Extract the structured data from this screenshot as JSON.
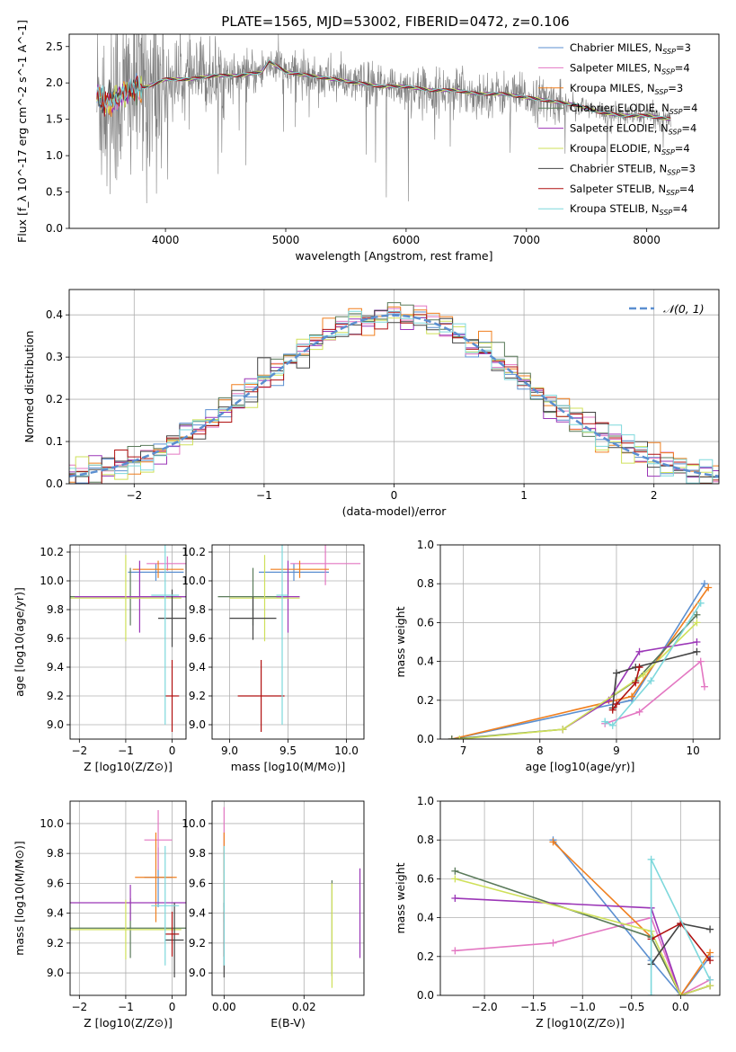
{
  "figure": {
    "title": "PLATE=1565, MJD=53002, FIBERID=0472, z=0.106"
  },
  "models": [
    {
      "name": "Chabrier MILES",
      "nssp": 3,
      "color": "#5b8fd0"
    },
    {
      "name": "Salpeter MILES",
      "nssp": 4,
      "color": "#e377c2"
    },
    {
      "name": "Kroupa MILES",
      "nssp": 3,
      "color": "#f07f1e"
    },
    {
      "name": "Chabrier ELODIE",
      "nssp": 4,
      "color": "#5a7a5a"
    },
    {
      "name": "Salpeter ELODIE",
      "nssp": 4,
      "color": "#9b36b7"
    },
    {
      "name": "Kroupa ELODIE",
      "nssp": 4,
      "color": "#cfe05a"
    },
    {
      "name": "Chabrier STELIB",
      "nssp": 3,
      "color": "#444444"
    },
    {
      "name": "Salpeter STELIB",
      "nssp": 4,
      "color": "#b01010"
    },
    {
      "name": "Kroupa STELIB",
      "nssp": 4,
      "color": "#7dd8dc"
    }
  ],
  "chart_data": [
    {
      "id": "spectrum",
      "type": "line",
      "xlabel": "wavelength [Angstrom, rest frame]",
      "ylabel": "Flux [f_λ 10^-17 erg cm^-2 s^-1 A^-1]",
      "xlim": [
        3200,
        8600
      ],
      "ylim": [
        0,
        2.67
      ],
      "xticks": [
        4000,
        5000,
        6000,
        7000,
        8000
      ],
      "yticks": [
        0.0,
        0.5,
        1.0,
        1.5,
        2.0,
        2.5
      ],
      "grid": false,
      "legend": "top-right",
      "data_color": "#7f7f7f",
      "continuum": {
        "x": [
          3430,
          3550,
          3700,
          3850,
          4000,
          4200,
          4400,
          4600,
          4800,
          4860,
          5000,
          5200,
          5400,
          5600,
          5800,
          6000,
          6200,
          6400,
          6600,
          6800,
          7000,
          7200,
          7400,
          7600,
          7800,
          8000,
          8200
        ],
        "y": [
          1.8,
          1.75,
          1.9,
          1.95,
          2.05,
          2.05,
          2.1,
          2.1,
          2.15,
          2.3,
          2.15,
          2.1,
          2.05,
          2.0,
          1.95,
          1.95,
          1.9,
          1.9,
          1.85,
          1.85,
          1.8,
          1.75,
          1.7,
          1.6,
          1.55,
          1.55,
          1.5
        ]
      }
    },
    {
      "id": "residuals",
      "type": "histogram",
      "xlabel": "(data-model)/error",
      "ylabel": "Normed distribution",
      "xlim": [
        -2.5,
        2.5
      ],
      "ylim": [
        0,
        0.46
      ],
      "xticks": [
        -2,
        -1,
        0,
        1,
        2
      ],
      "yticks": [
        0.0,
        0.1,
        0.2,
        0.3,
        0.4
      ],
      "grid": true,
      "legend": "top-right",
      "reference_label": "𝒩(0, 1)",
      "reference": {
        "mean": 0,
        "sigma": 1
      },
      "bin_width": 0.1
    },
    {
      "id": "age-vs-Z",
      "type": "errorbar",
      "xlabel": "Z [log10(Z/Z⊙)]",
      "ylabel": "age [log10(age/yr)]",
      "xlim": [
        -2.2,
        0.3
      ],
      "ylim": [
        8.9,
        10.25
      ],
      "xticks": [
        -2,
        -1,
        0
      ],
      "yticks": [
        9.0,
        9.2,
        9.4,
        9.6,
        9.8,
        10.0,
        10.2
      ],
      "grid": true,
      "points": [
        {
          "model": 0,
          "x": -0.35,
          "xerr": 0.6,
          "y": 10.06,
          "yerr": 0.06
        },
        {
          "model": 1,
          "x": -0.1,
          "xerr": 0.45,
          "y": 10.12,
          "yerr": 0.05
        },
        {
          "model": 2,
          "x": -0.3,
          "xerr": 0.55,
          "y": 10.08,
          "yerr": 0.06
        },
        {
          "model": 3,
          "x": -0.9,
          "xerr": 1.3,
          "y": 9.89,
          "yerr": 0.2
        },
        {
          "model": 4,
          "x": -0.7,
          "xerr": 1.4,
          "y": 9.89,
          "yerr": 0.25
        },
        {
          "model": 5,
          "x": -1.0,
          "xerr": 1.2,
          "y": 9.88,
          "yerr": 0.3
        },
        {
          "model": 6,
          "x": 0.0,
          "xerr": 0.3,
          "y": 9.74,
          "yerr": 0.2
        },
        {
          "model": 7,
          "x": 0.0,
          "xerr": 0.15,
          "y": 9.2,
          "yerr": 0.25
        },
        {
          "model": 8,
          "x": -0.15,
          "xerr": 0.3,
          "y": 9.9,
          "yerr": 0.9
        }
      ]
    },
    {
      "id": "age-vs-mass",
      "type": "errorbar",
      "xlabel": "mass [log10(M/M⊙)]",
      "ylabel": "",
      "xlim": [
        8.85,
        10.15
      ],
      "ylim": [
        8.9,
        10.25
      ],
      "xticks": [
        9.0,
        9.5,
        10.0
      ],
      "yticks": [
        9.0,
        9.2,
        9.4,
        9.6,
        9.8,
        10.0,
        10.2
      ],
      "grid": true,
      "points": [
        {
          "model": 0,
          "x": 9.55,
          "xerr": 0.3,
          "y": 10.06,
          "yerr": 0.06
        },
        {
          "model": 1,
          "x": 9.82,
          "xerr": 0.3,
          "y": 10.12,
          "yerr": 0.15
        },
        {
          "model": 2,
          "x": 9.6,
          "xerr": 0.25,
          "y": 10.08,
          "yerr": 0.06
        },
        {
          "model": 3,
          "x": 9.2,
          "xerr": 0.3,
          "y": 9.89,
          "yerr": 0.2
        },
        {
          "model": 4,
          "x": 9.5,
          "xerr": 0.1,
          "y": 9.89,
          "yerr": 0.25
        },
        {
          "model": 5,
          "x": 9.3,
          "xerr": 0.3,
          "y": 9.88,
          "yerr": 0.3
        },
        {
          "model": 6,
          "x": 9.2,
          "xerr": 0.2,
          "y": 9.74,
          "yerr": 0.15
        },
        {
          "model": 7,
          "x": 9.27,
          "xerr": 0.2,
          "y": 9.2,
          "yerr": 0.25
        },
        {
          "model": 8,
          "x": 9.45,
          "xerr": 0.05,
          "y": 9.9,
          "yerr": 0.9
        }
      ]
    },
    {
      "id": "weight-vs-age",
      "type": "line",
      "xlabel": "age [log10(age/yr)]",
      "ylabel": "mass weight",
      "xlim": [
        6.7,
        10.35
      ],
      "ylim": [
        0,
        1.0
      ],
      "xticks": [
        7,
        8,
        9,
        10
      ],
      "yticks": [
        0.0,
        0.2,
        0.4,
        0.6,
        0.8,
        1.0
      ],
      "grid": true,
      "series": [
        {
          "model": 0,
          "x": [
            6.85,
            9.2,
            10.15
          ],
          "y": [
            0.0,
            0.2,
            0.8
          ]
        },
        {
          "model": 1,
          "x": [
            8.85,
            9.3,
            10.1,
            10.15
          ],
          "y": [
            0.08,
            0.14,
            0.4,
            0.27
          ]
        },
        {
          "model": 2,
          "x": [
            6.85,
            9.2,
            10.2
          ],
          "y": [
            0.0,
            0.22,
            0.78
          ]
        },
        {
          "model": 3,
          "x": [
            6.85,
            8.3,
            9.25,
            10.05
          ],
          "y": [
            0.0,
            0.05,
            0.3,
            0.64
          ]
        },
        {
          "model": 4,
          "x": [
            8.3,
            8.9,
            9.3,
            10.05
          ],
          "y": [
            0.05,
            0.2,
            0.45,
            0.5
          ]
        },
        {
          "model": 5,
          "x": [
            6.95,
            8.3,
            9.35,
            10.05
          ],
          "y": [
            0.0,
            0.05,
            0.33,
            0.6
          ]
        },
        {
          "model": 6,
          "x": [
            8.95,
            9.0,
            9.25,
            10.05
          ],
          "y": [
            0.16,
            0.34,
            0.37,
            0.45
          ]
        },
        {
          "model": 7,
          "x": [
            8.95,
            9.0,
            9.25,
            9.3
          ],
          "y": [
            0.15,
            0.18,
            0.29,
            0.37
          ]
        },
        {
          "model": 8,
          "x": [
            8.85,
            8.95,
            9.45,
            10.1
          ],
          "y": [
            0.09,
            0.07,
            0.3,
            0.7
          ]
        }
      ]
    },
    {
      "id": "mass-vs-Z",
      "type": "errorbar",
      "xlabel": "Z [log10(Z/Z⊙)]",
      "ylabel": "mass [log10(M/M⊙)]",
      "xlim": [
        -2.2,
        0.3
      ],
      "ylim": [
        8.85,
        10.15
      ],
      "xticks": [
        -2,
        -1,
        0
      ],
      "yticks": [
        9.0,
        9.2,
        9.4,
        9.6,
        9.8,
        10.0
      ],
      "grid": true,
      "points": [
        {
          "model": 0,
          "x": -0.3,
          "xerr": 0.3,
          "y": 9.64,
          "yerr": 0.2
        },
        {
          "model": 1,
          "x": -0.3,
          "xerr": 0.3,
          "y": 9.89,
          "yerr": 0.2
        },
        {
          "model": 2,
          "x": -0.35,
          "xerr": 0.45,
          "y": 9.64,
          "yerr": 0.3
        },
        {
          "model": 3,
          "x": -0.9,
          "xerr": 1.3,
          "y": 9.3,
          "yerr": 0.2
        },
        {
          "model": 4,
          "x": -0.9,
          "xerr": 1.3,
          "y": 9.47,
          "yerr": 0.12
        },
        {
          "model": 5,
          "x": -1.0,
          "xerr": 1.2,
          "y": 9.29,
          "yerr": 0.2
        },
        {
          "model": 6,
          "x": 0.05,
          "xerr": 0.2,
          "y": 9.22,
          "yerr": 0.25
        },
        {
          "model": 7,
          "x": 0.0,
          "xerr": 0.15,
          "y": 9.26,
          "yerr": 0.15
        },
        {
          "model": 8,
          "x": -0.15,
          "xerr": 0.3,
          "y": 9.45,
          "yerr": 0.4
        }
      ]
    },
    {
      "id": "mass-vs-ebv",
      "type": "errorbar",
      "xlabel": "E(B-V)",
      "ylabel": "",
      "xlim": [
        -0.003,
        0.035
      ],
      "ylim": [
        8.85,
        10.15
      ],
      "xticks": [
        0.0,
        0.02
      ],
      "yticks": [
        9.0,
        9.2,
        9.4,
        9.6,
        9.8,
        10.0
      ],
      "grid": true,
      "points": [
        {
          "model": 0,
          "x": 0.0,
          "xerr": 0,
          "y": 9.64,
          "yerr": 0.2
        },
        {
          "model": 1,
          "x": 0.0,
          "xerr": 0,
          "y": 9.89,
          "yerr": 0.22
        },
        {
          "model": 2,
          "x": 0.0,
          "xerr": 0,
          "y": 9.64,
          "yerr": 0.3
        },
        {
          "model": 3,
          "x": 0.027,
          "xerr": 0,
          "y": 9.3,
          "yerr": 0.32
        },
        {
          "model": 4,
          "x": 0.034,
          "xerr": 0,
          "y": 9.4,
          "yerr": 0.3
        },
        {
          "model": 5,
          "x": 0.027,
          "xerr": 0,
          "y": 9.25,
          "yerr": 0.35
        },
        {
          "model": 6,
          "x": 0.0,
          "xerr": 0,
          "y": 9.22,
          "yerr": 0.25
        },
        {
          "model": 7,
          "x": 0.0,
          "xerr": 0,
          "y": 9.26,
          "yerr": 0.15
        },
        {
          "model": 8,
          "x": 0.0,
          "xerr": 0,
          "y": 9.45,
          "yerr": 0.4
        }
      ]
    },
    {
      "id": "weight-vs-Z",
      "type": "line",
      "xlabel": "Z [log10(Z/Z⊙)]",
      "ylabel": "mass weight",
      "xlim": [
        -2.45,
        0.4
      ],
      "ylim": [
        0,
        1.0
      ],
      "xticks": [
        -2.0,
        -1.5,
        -1.0,
        -0.5,
        0.0
      ],
      "yticks": [
        0.0,
        0.2,
        0.4,
        0.6,
        0.8,
        1.0
      ],
      "grid": true,
      "series": [
        {
          "model": 0,
          "x": [
            -1.3,
            -0.3,
            0.0,
            0.3
          ],
          "y": [
            0.8,
            0.18,
            0.0,
            0.2
          ]
        },
        {
          "model": 1,
          "x": [
            -2.3,
            -1.3,
            -0.3,
            0.0,
            0.3
          ],
          "y": [
            0.23,
            0.27,
            0.4,
            0.0,
            0.08
          ]
        },
        {
          "model": 2,
          "x": [
            -1.3,
            -0.3,
            0.0,
            0.3
          ],
          "y": [
            0.79,
            0.3,
            0.0,
            0.22
          ]
        },
        {
          "model": 3,
          "x": [
            -2.3,
            -0.3,
            0.0,
            0.3
          ],
          "y": [
            0.64,
            0.3,
            0.0,
            0.05
          ]
        },
        {
          "model": 4,
          "x": [
            -2.3,
            -0.3,
            0.0,
            0.3
          ],
          "y": [
            0.5,
            0.45,
            0.0,
            0.05
          ]
        },
        {
          "model": 5,
          "x": [
            -2.3,
            -0.3,
            0.0,
            0.3
          ],
          "y": [
            0.6,
            0.33,
            0.0,
            0.05
          ]
        },
        {
          "model": 6,
          "x": [
            -0.3,
            0.0,
            0.3
          ],
          "y": [
            0.16,
            0.37,
            0.34
          ]
        },
        {
          "model": 7,
          "x": [
            -0.3,
            0.0,
            0.3
          ],
          "y": [
            0.29,
            0.37,
            0.18
          ]
        },
        {
          "model": 8,
          "x": [
            -0.3,
            -0.3,
            0.3
          ],
          "y": [
            0.0,
            0.7,
            0.08
          ]
        }
      ]
    }
  ]
}
